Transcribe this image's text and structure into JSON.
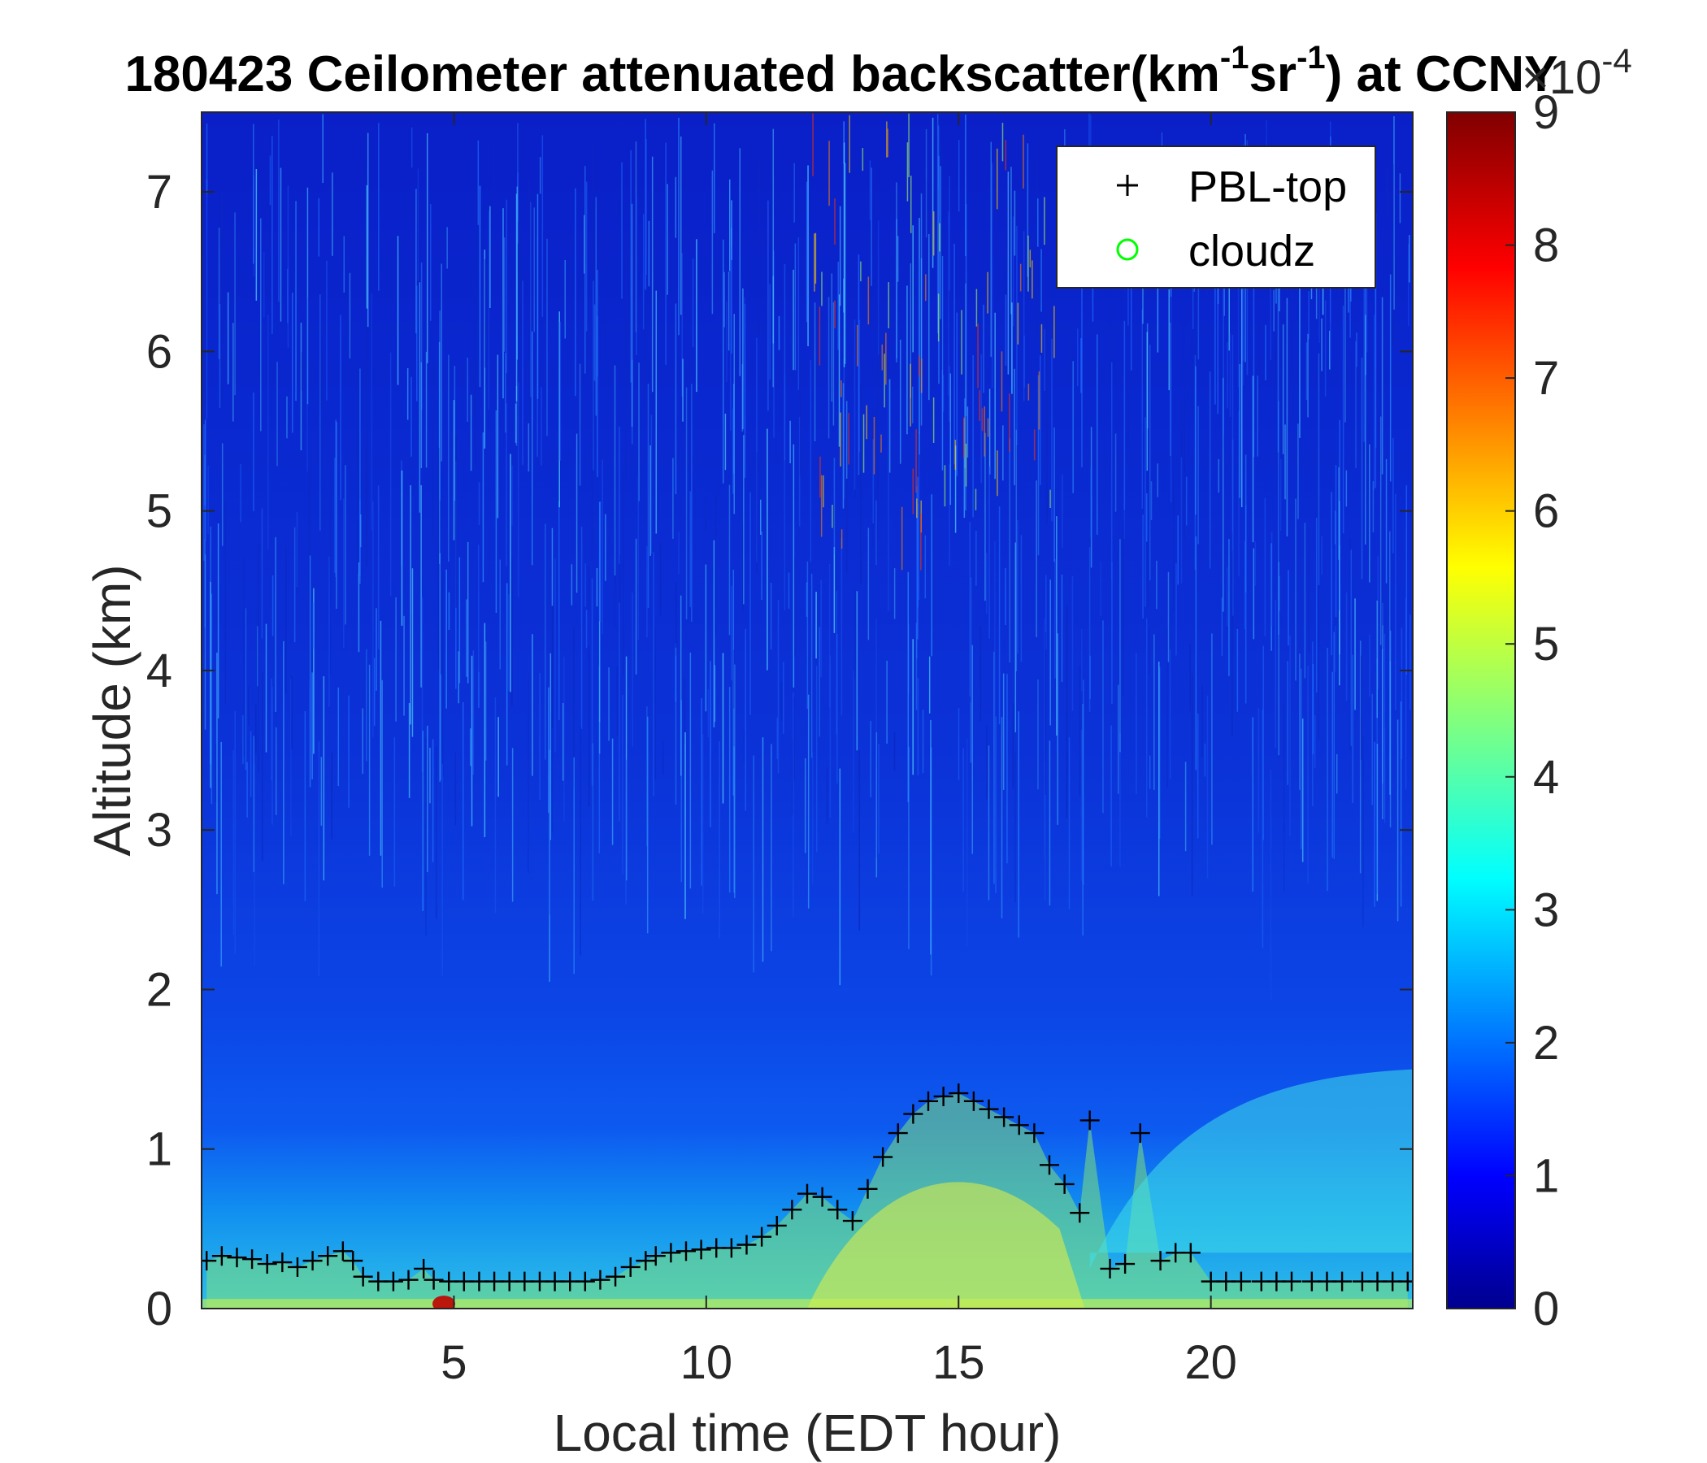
{
  "chart_data": {
    "type": "heatmap",
    "title_parts": {
      "main": "180423 Ceilometer attenuated backscatter(km",
      "sup1": "-1",
      "mid": "sr",
      "sup2": "-1",
      "end": ") at CCNY"
    },
    "xlabel": "Local time (EDT hour)",
    "ylabel": "Altitude (km)",
    "xlim": [
      0,
      24
    ],
    "ylim": [
      0,
      7.5
    ],
    "xticks": [
      5,
      10,
      15,
      20
    ],
    "xtick_labels": [
      "5",
      "10",
      "15",
      "20"
    ],
    "yticks": [
      0,
      1,
      2,
      3,
      4,
      5,
      6,
      7
    ],
    "ytick_labels": [
      "0",
      "1",
      "2",
      "3",
      "4",
      "5",
      "6",
      "7"
    ],
    "colorbar": {
      "colormap": "jet",
      "range": [
        0,
        9
      ],
      "ticks": [
        0,
        1,
        2,
        3,
        4,
        5,
        6,
        7,
        8,
        9
      ],
      "tick_labels": [
        "0",
        "1",
        "2",
        "3",
        "4",
        "5",
        "6",
        "7",
        "8",
        "9"
      ],
      "exponent_base": "×10",
      "exponent_power": "-4"
    },
    "legend": {
      "placement": "top-right",
      "entries": [
        {
          "label": "PBL-top",
          "marker": "+",
          "color": "#000000"
        },
        {
          "label": "cloudz",
          "marker": "o",
          "color": "#00ff00"
        }
      ]
    },
    "series": [
      {
        "name": "PBL-top",
        "x": [
          0.1,
          0.4,
          0.7,
          1.0,
          1.3,
          1.6,
          1.9,
          2.2,
          2.5,
          2.8,
          3.0,
          3.2,
          3.5,
          3.8,
          4.1,
          4.4,
          4.6,
          4.9,
          5.2,
          5.5,
          5.8,
          6.1,
          6.4,
          6.7,
          7.0,
          7.3,
          7.6,
          7.9,
          8.2,
          8.5,
          8.8,
          9.0,
          9.3,
          9.6,
          9.9,
          10.2,
          10.5,
          10.8,
          11.1,
          11.4,
          11.7,
          12.0,
          12.3,
          12.6,
          12.9,
          13.2,
          13.5,
          13.8,
          14.1,
          14.4,
          14.7,
          15.0,
          15.3,
          15.6,
          15.9,
          16.2,
          16.5,
          16.8,
          17.1,
          17.4,
          17.6,
          18.0,
          18.3,
          18.6,
          19.0,
          19.3,
          19.6,
          20.0,
          20.3,
          20.6,
          21.0,
          21.3,
          21.6,
          22.0,
          22.3,
          22.6,
          23.0,
          23.3,
          23.6,
          23.9
        ],
        "y": [
          0.3,
          0.33,
          0.32,
          0.31,
          0.28,
          0.29,
          0.26,
          0.3,
          0.33,
          0.36,
          0.3,
          0.2,
          0.17,
          0.17,
          0.18,
          0.25,
          0.18,
          0.17,
          0.17,
          0.17,
          0.17,
          0.17,
          0.17,
          0.17,
          0.17,
          0.17,
          0.17,
          0.18,
          0.2,
          0.26,
          0.3,
          0.33,
          0.35,
          0.36,
          0.37,
          0.38,
          0.38,
          0.4,
          0.45,
          0.52,
          0.62,
          0.72,
          0.7,
          0.62,
          0.55,
          0.75,
          0.95,
          1.1,
          1.22,
          1.3,
          1.33,
          1.35,
          1.3,
          1.25,
          1.2,
          1.15,
          1.1,
          0.9,
          0.78,
          0.6,
          1.18,
          0.25,
          0.28,
          1.1,
          0.3,
          0.35,
          0.35,
          0.17,
          0.17,
          0.17,
          0.17,
          0.17,
          0.17,
          0.17,
          0.17,
          0.17,
          0.17,
          0.17,
          0.17,
          0.17
        ]
      },
      {
        "name": "cloudz",
        "x": [],
        "y": []
      }
    ]
  }
}
